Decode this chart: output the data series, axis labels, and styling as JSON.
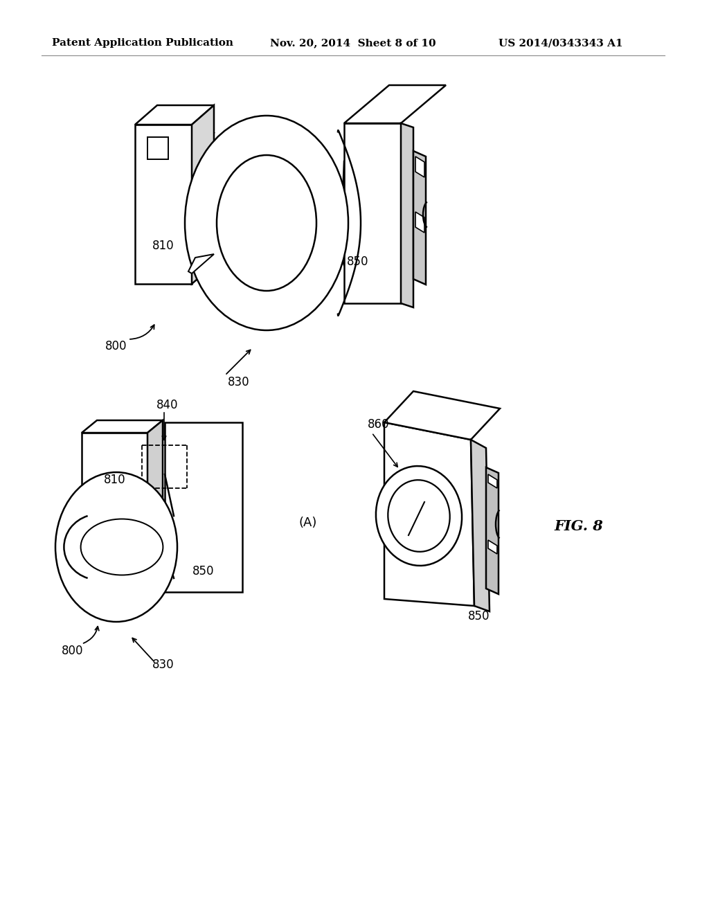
{
  "background_color": "#ffffff",
  "line_color": "#000000",
  "line_width": 1.8,
  "header_left": "Patent Application Publication",
  "header_center": "Nov. 20, 2014  Sheet 8 of 10",
  "header_right": "US 2014/0343343 A1",
  "fig_label": "FIG. 8"
}
